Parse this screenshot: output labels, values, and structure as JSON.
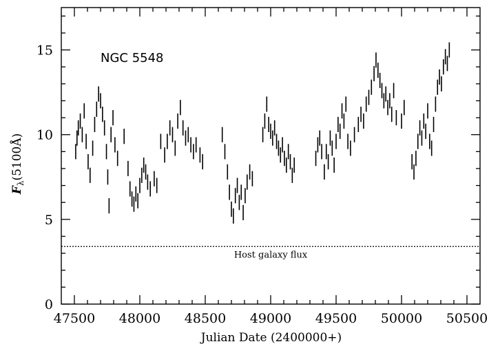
{
  "chart_data": {
    "type": "scatter",
    "title": "",
    "xlabel": "Julian Date (2400000+)",
    "ylabel_main": "F",
    "ylabel_sub": "λ",
    "ylabel_rest": "(5100Å)",
    "xlim": [
      47400,
      50600
    ],
    "ylim": [
      0,
      17.5
    ],
    "x_ticks": [
      47500,
      48000,
      48500,
      49000,
      49500,
      50000,
      50500
    ],
    "y_ticks": [
      0,
      5,
      10,
      15
    ],
    "grid": false,
    "object_label": "NGC 5548",
    "host_galaxy": {
      "label": "Host galaxy flux",
      "value": 3.4
    },
    "series": [
      {
        "points": [
          [
            47510,
            9.0,
            0.45
          ],
          [
            47520,
            9.8,
            0.45
          ],
          [
            47530,
            10.4,
            0.45
          ],
          [
            47545,
            10.8,
            0.45
          ],
          [
            47560,
            10.0,
            0.45
          ],
          [
            47575,
            11.4,
            0.45
          ],
          [
            47590,
            9.6,
            0.45
          ],
          [
            47605,
            8.4,
            0.45
          ],
          [
            47620,
            7.6,
            0.45
          ],
          [
            47640,
            9.2,
            0.45
          ],
          [
            47655,
            10.6,
            0.45
          ],
          [
            47670,
            11.5,
            0.45
          ],
          [
            47685,
            12.4,
            0.45
          ],
          [
            47700,
            12.0,
            0.45
          ],
          [
            47715,
            11.2,
            0.45
          ],
          [
            47730,
            10.4,
            0.45
          ],
          [
            47745,
            9.0,
            0.45
          ],
          [
            47755,
            7.5,
            0.45
          ],
          [
            47765,
            5.8,
            0.45
          ],
          [
            47780,
            10.0,
            0.45
          ],
          [
            47795,
            11.0,
            0.45
          ],
          [
            47810,
            9.4,
            0.45
          ],
          [
            47830,
            8.6,
            0.45
          ],
          [
            47880,
            9.9,
            0.45
          ],
          [
            47910,
            8.0,
            0.45
          ],
          [
            47925,
            6.8,
            0.45
          ],
          [
            47940,
            6.2,
            0.45
          ],
          [
            47955,
            5.9,
            0.45
          ],
          [
            47970,
            6.5,
            0.45
          ],
          [
            47985,
            6.1,
            0.45
          ],
          [
            48000,
            7.0,
            0.45
          ],
          [
            48015,
            7.6,
            0.45
          ],
          [
            48030,
            8.2,
            0.45
          ],
          [
            48045,
            7.8,
            0.45
          ],
          [
            48060,
            7.2,
            0.45
          ],
          [
            48080,
            6.8,
            0.45
          ],
          [
            48110,
            7.4,
            0.45
          ],
          [
            48130,
            7.0,
            0.45
          ],
          [
            48160,
            9.6,
            0.45
          ],
          [
            48190,
            8.8,
            0.45
          ],
          [
            48210,
            9.6,
            0.45
          ],
          [
            48230,
            10.4,
            0.45
          ],
          [
            48250,
            10.0,
            0.45
          ],
          [
            48270,
            9.2,
            0.45
          ],
          [
            48290,
            10.8,
            0.45
          ],
          [
            48310,
            11.6,
            0.45
          ],
          [
            48330,
            10.4,
            0.45
          ],
          [
            48350,
            9.8,
            0.45
          ],
          [
            48370,
            10.0,
            0.45
          ],
          [
            48390,
            9.4,
            0.45
          ],
          [
            48410,
            9.0,
            0.45
          ],
          [
            48430,
            9.4,
            0.45
          ],
          [
            48460,
            8.8,
            0.45
          ],
          [
            48480,
            8.4,
            0.45
          ],
          [
            48630,
            10.0,
            0.45
          ],
          [
            48650,
            9.0,
            0.45
          ],
          [
            48670,
            7.8,
            0.45
          ],
          [
            48685,
            6.6,
            0.45
          ],
          [
            48700,
            5.6,
            0.45
          ],
          [
            48715,
            5.2,
            0.45
          ],
          [
            48730,
            6.4,
            0.45
          ],
          [
            48745,
            7.0,
            0.45
          ],
          [
            48760,
            6.0,
            0.45
          ],
          [
            48775,
            6.6,
            0.45
          ],
          [
            48790,
            5.4,
            0.45
          ],
          [
            48805,
            6.4,
            0.45
          ],
          [
            48820,
            7.2,
            0.45
          ],
          [
            48840,
            7.8,
            0.45
          ],
          [
            48860,
            7.4,
            0.45
          ],
          [
            48940,
            10.0,
            0.45
          ],
          [
            48955,
            10.8,
            0.45
          ],
          [
            48970,
            11.8,
            0.45
          ],
          [
            48985,
            10.6,
            0.45
          ],
          [
            49000,
            10.2,
            0.45
          ],
          [
            49015,
            9.8,
            0.45
          ],
          [
            49030,
            10.4,
            0.45
          ],
          [
            49045,
            9.6,
            0.45
          ],
          [
            49060,
            9.2,
            0.45
          ],
          [
            49075,
            8.8,
            0.45
          ],
          [
            49090,
            9.4,
            0.45
          ],
          [
            49105,
            8.6,
            0.45
          ],
          [
            49120,
            8.2,
            0.45
          ],
          [
            49135,
            9.0,
            0.45
          ],
          [
            49150,
            8.4,
            0.45
          ],
          [
            49165,
            7.6,
            0.45
          ],
          [
            49180,
            8.2,
            0.45
          ],
          [
            49345,
            8.6,
            0.45
          ],
          [
            49360,
            9.4,
            0.45
          ],
          [
            49375,
            9.8,
            0.45
          ],
          [
            49390,
            9.0,
            0.45
          ],
          [
            49410,
            7.8,
            0.45
          ],
          [
            49425,
            9.0,
            0.45
          ],
          [
            49440,
            8.4,
            0.45
          ],
          [
            49455,
            9.8,
            0.45
          ],
          [
            49470,
            9.2,
            0.45
          ],
          [
            49485,
            8.2,
            0.45
          ],
          [
            49500,
            9.6,
            0.45
          ],
          [
            49515,
            10.6,
            0.45
          ],
          [
            49530,
            10.2,
            0.45
          ],
          [
            49545,
            11.4,
            0.45
          ],
          [
            49560,
            10.8,
            0.45
          ],
          [
            49575,
            11.8,
            0.45
          ],
          [
            49590,
            9.6,
            0.45
          ],
          [
            49610,
            9.2,
            0.45
          ],
          [
            49640,
            10.0,
            0.45
          ],
          [
            49670,
            10.6,
            0.45
          ],
          [
            49690,
            11.2,
            0.45
          ],
          [
            49710,
            10.8,
            0.45
          ],
          [
            49730,
            11.8,
            0.45
          ],
          [
            49750,
            12.2,
            0.45
          ],
          [
            49770,
            12.8,
            0.45
          ],
          [
            49790,
            13.6,
            0.45
          ],
          [
            49805,
            14.4,
            0.45
          ],
          [
            49820,
            13.8,
            0.45
          ],
          [
            49835,
            13.2,
            0.45
          ],
          [
            49850,
            12.6,
            0.45
          ],
          [
            49865,
            12.0,
            0.45
          ],
          [
            49880,
            12.4,
            0.45
          ],
          [
            49895,
            11.6,
            0.45
          ],
          [
            49910,
            12.0,
            0.45
          ],
          [
            49925,
            11.2,
            0.45
          ],
          [
            49940,
            12.6,
            0.45
          ],
          [
            49960,
            11.0,
            0.45
          ],
          [
            50000,
            10.8,
            0.45
          ],
          [
            50020,
            11.6,
            0.45
          ],
          [
            50080,
            8.4,
            0.45
          ],
          [
            50095,
            7.8,
            0.45
          ],
          [
            50110,
            8.6,
            0.45
          ],
          [
            50125,
            9.6,
            0.45
          ],
          [
            50140,
            10.4,
            0.45
          ],
          [
            50155,
            9.8,
            0.45
          ],
          [
            50170,
            10.8,
            0.45
          ],
          [
            50185,
            10.2,
            0.45
          ],
          [
            50200,
            11.4,
            0.45
          ],
          [
            50215,
            9.6,
            0.45
          ],
          [
            50230,
            9.2,
            0.45
          ],
          [
            50245,
            10.6,
            0.45
          ],
          [
            50260,
            11.8,
            0.45
          ],
          [
            50275,
            12.8,
            0.45
          ],
          [
            50290,
            13.4,
            0.45
          ],
          [
            50305,
            13.0,
            0.45
          ],
          [
            50320,
            14.0,
            0.45
          ],
          [
            50335,
            14.6,
            0.45
          ],
          [
            50350,
            14.2,
            0.45
          ],
          [
            50365,
            15.0,
            0.45
          ]
        ]
      }
    ]
  }
}
